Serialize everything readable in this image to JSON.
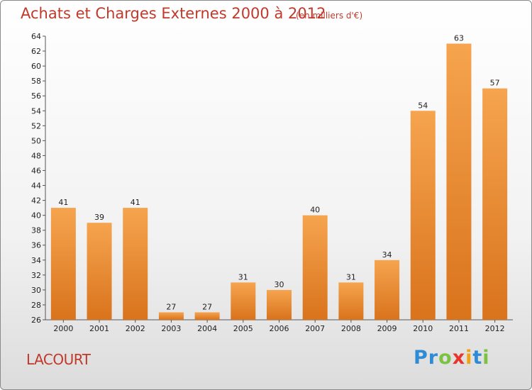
{
  "title": "Achats et Charges Externes 2000 à 2012",
  "unit": "(en milliers d'€)",
  "commune": "LACOURT",
  "logo": {
    "letters": [
      "P",
      "r",
      "o",
      "x",
      "i",
      "t",
      "i"
    ],
    "colors": [
      "#2e8bd6",
      "#2e8bd6",
      "#7cc242",
      "#e8342b",
      "#f2a20f",
      "#2e8bd6",
      "#7cc242"
    ]
  },
  "colors": {
    "bar_light": "#f6a44f",
    "bar_dark": "#d9731c",
    "title": "#c0392b"
  },
  "chart_data": {
    "type": "bar",
    "categories": [
      "2000",
      "2001",
      "2002",
      "2003",
      "2004",
      "2005",
      "2006",
      "2007",
      "2008",
      "2009",
      "2010",
      "2011",
      "2012"
    ],
    "values": [
      41,
      39,
      41,
      27,
      27,
      31,
      30,
      40,
      31,
      34,
      54,
      63,
      57
    ],
    "title": "Achats et Charges Externes 2000 à 2012",
    "subtitle": "(en milliers d'€)",
    "xlabel": "",
    "ylabel": "",
    "ylim": [
      26,
      64
    ],
    "yticks": [
      26,
      28,
      30,
      32,
      34,
      36,
      38,
      40,
      42,
      44,
      46,
      48,
      50,
      52,
      54,
      56,
      58,
      60,
      62,
      64
    ],
    "grid": false,
    "legend": "none"
  }
}
